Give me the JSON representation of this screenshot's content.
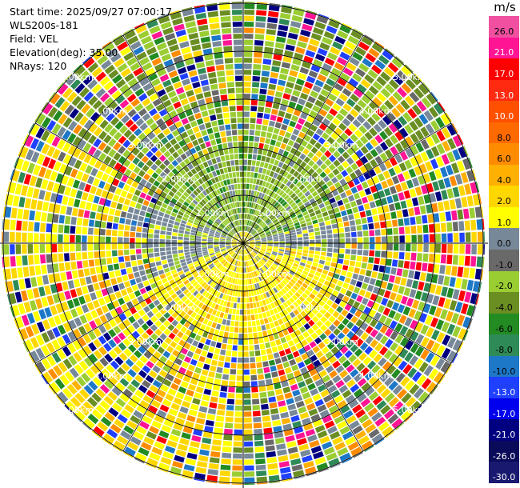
{
  "info": {
    "start_time": "Start time: 2025/09/27 07:00:17",
    "instrument": "WLS200s-181",
    "field": "Field: VEL",
    "elevation": "Elevation(deg): 35.00",
    "nrays": "NRays: 120"
  },
  "colorbar": {
    "unit": "m/s",
    "bins": [
      {
        "label": "26.0",
        "color": "#f0509f"
      },
      {
        "label": "21.0",
        "color": "#ff1493"
      },
      {
        "label": "17.0",
        "color": "#ff0000"
      },
      {
        "label": "13.0",
        "color": "#ff2a10"
      },
      {
        "label": "10.0",
        "color": "#ff5000"
      },
      {
        "label": "8.0",
        "color": "#ff6a00"
      },
      {
        "label": "6.0",
        "color": "#ff8c00"
      },
      {
        "label": "4.0",
        "color": "#ffb000"
      },
      {
        "label": "2.0",
        "color": "#ffd700"
      },
      {
        "label": "1.0",
        "color": "#ffff00"
      },
      {
        "label": "0.0",
        "color": "#778899"
      },
      {
        "label": "-1.0",
        "color": "#696969"
      },
      {
        "label": "-2.0",
        "color": "#9acd32"
      },
      {
        "label": "-4.0",
        "color": "#6b8e23"
      },
      {
        "label": "-6.0",
        "color": "#228b22"
      },
      {
        "label": "-8.0",
        "color": "#2e8b57"
      },
      {
        "label": "-10.0",
        "color": "#1e78c8"
      },
      {
        "label": "-13.0",
        "color": "#2040ff"
      },
      {
        "label": "-17.0",
        "color": "#0000ee"
      },
      {
        "label": "-21.0",
        "color": "#000080"
      },
      {
        "label": "-26.0",
        "color": "#0a0a5a"
      },
      {
        "label": "-30.0",
        "color": "#191970"
      }
    ]
  },
  "range_rings": [
    "1.00km",
    "2.00km",
    "3.00km",
    "4.00km",
    "5.00km"
  ],
  "palette": {
    "yellow": "#ffff00",
    "gold": "#ffd700",
    "amber": "#ffb000",
    "orange": "#ff8c00",
    "slate": "#778899",
    "dimgray": "#696969",
    "yellowgreen": "#9acd32",
    "olive": "#6b8e23",
    "forest": "#228b22",
    "seagreen": "#2e8b57",
    "blue": "#1e78c8",
    "royal": "#2040ff",
    "navy": "#000080",
    "pink": "#ff1493",
    "red": "#ff0000"
  }
}
